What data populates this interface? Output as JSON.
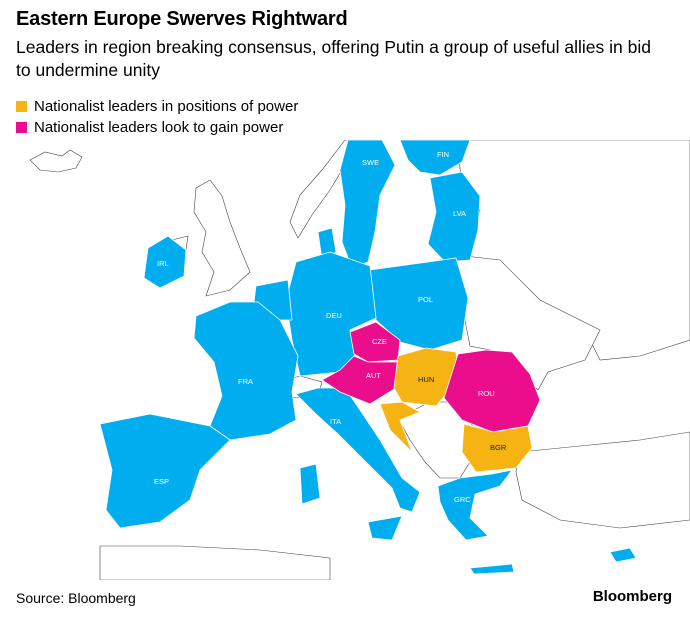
{
  "header": {
    "title": "Eastern Europe Swerves Rightward",
    "subtitle": "Leaders in region breaking consensus, offering Putin a group of useful allies in bid to undermine unity"
  },
  "legend": [
    {
      "label": "Nationalist leaders in positions of power",
      "color": "#F5B414"
    },
    {
      "label": "Nationalist leaders look to gain power",
      "color": "#EB0E8C"
    }
  ],
  "colors": {
    "eu": "#00AEEF",
    "power": "#F5B414",
    "gain": "#EB0E8C",
    "other": "#ffffff",
    "outline": "#444444"
  },
  "countries": [
    {
      "code": "SWE",
      "group": "eu"
    },
    {
      "code": "FIN",
      "group": "eu"
    },
    {
      "code": "LVA",
      "group": "eu"
    },
    {
      "code": "IRL",
      "group": "eu"
    },
    {
      "code": "POL",
      "group": "eu"
    },
    {
      "code": "DEU",
      "group": "eu"
    },
    {
      "code": "CZE",
      "group": "gain"
    },
    {
      "code": "AUT",
      "group": "gain"
    },
    {
      "code": "HUN",
      "group": "power"
    },
    {
      "code": "ROU",
      "group": "gain"
    },
    {
      "code": "FRA",
      "group": "eu"
    },
    {
      "code": "ITA",
      "group": "eu"
    },
    {
      "code": "BGR",
      "group": "power"
    },
    {
      "code": "ESP",
      "group": "eu"
    },
    {
      "code": "GRC",
      "group": "eu"
    }
  ],
  "footer": {
    "source": "Source: Bloomberg",
    "brand": "Bloomberg"
  }
}
